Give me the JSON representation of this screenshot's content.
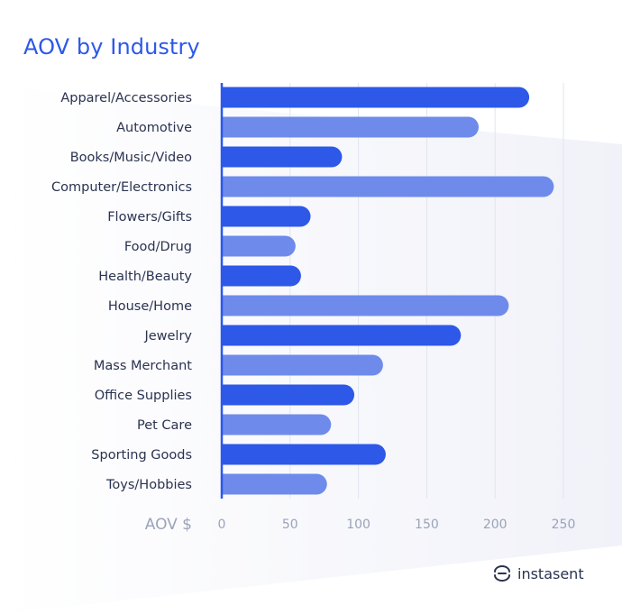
{
  "chart_data": {
    "type": "bar",
    "orientation": "horizontal",
    "title": "AOV by Industry",
    "xlabel": "AOV $",
    "ylabel": "",
    "categories": [
      "Apparel/Accessories",
      "Automotive",
      "Books/Music/Video",
      "Computer/Electronics",
      "Flowers/Gifts",
      "Food/Drug",
      "Health/Beauty",
      "House/Home",
      "Jewelry",
      "Mass Merchant",
      "Office Supplies",
      "Pet Care",
      "Sporting Goods",
      "Toys/Hobbies"
    ],
    "values": [
      225,
      188,
      88,
      243,
      65,
      54,
      58,
      210,
      175,
      118,
      97,
      80,
      120,
      77
    ],
    "xlim": [
      0,
      250
    ],
    "xticks": [
      "0",
      "50",
      "100",
      "150",
      "200",
      "250"
    ],
    "grid": true,
    "colors": {
      "bar_dark": "#2d58e8",
      "bar_light": "#6e8beb",
      "grid": "#e2e5ee",
      "axis": "#2d58e8",
      "category_text": "#2a3350",
      "tick_text": "#9aa3b8"
    }
  },
  "brand": {
    "name": "instasent",
    "icon": "instasent-logo-icon"
  }
}
